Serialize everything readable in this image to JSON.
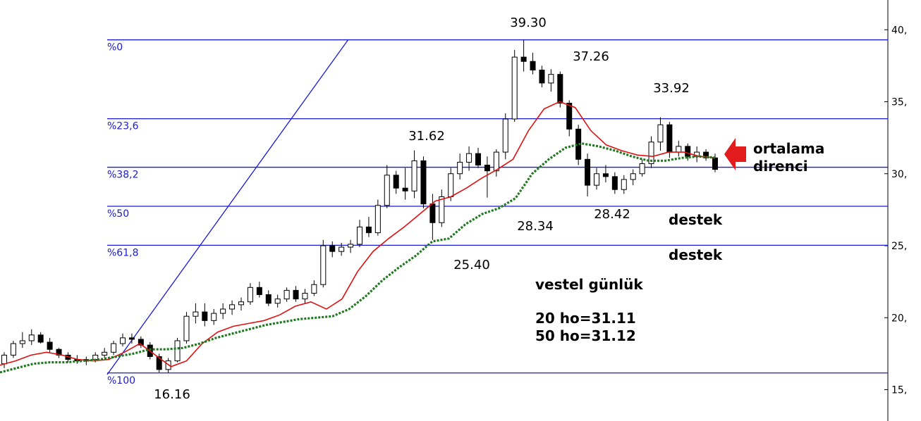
{
  "chart_data": {
    "type": "candlestick",
    "title": "vestel günlük",
    "ylim": [
      14.2,
      41.5
    ],
    "y_ticks": [
      {
        "value": 40,
        "label": "40,"
      },
      {
        "value": 35,
        "label": "35,"
      },
      {
        "value": 30,
        "label": "30,"
      },
      {
        "value": 25,
        "label": "25,"
      },
      {
        "value": 20,
        "label": "20,"
      },
      {
        "value": 15,
        "label": "15,"
      }
    ],
    "fibonacci_levels": [
      {
        "label": "%0",
        "value": 39.3
      },
      {
        "label": "%23,6",
        "value": 33.82
      },
      {
        "label": "%38,2",
        "value": 30.45
      },
      {
        "label": "%50",
        "value": 27.74
      },
      {
        "label": "%61,8",
        "value": 25.03
      },
      {
        "label": "%100",
        "value": 16.16
      }
    ],
    "price_annotations": [
      {
        "text": "39.30",
        "value": 39.3
      },
      {
        "text": "37.26",
        "value": 37.26
      },
      {
        "text": "33.92",
        "value": 33.92
      },
      {
        "text": "31.62",
        "value": 31.62
      },
      {
        "text": "28.34",
        "value": 28.34
      },
      {
        "text": "28.42",
        "value": 28.42
      },
      {
        "text": "25.40",
        "value": 25.4
      },
      {
        "text": "16.16",
        "value": 16.16
      }
    ],
    "notes": {
      "resistance_line1": "ortalama",
      "resistance_line2": "direnci",
      "support1": "destek",
      "support2": "destek",
      "title": "vestel günlük",
      "ma20": "20 ho=31.11",
      "ma50": "50 ho=31.12"
    },
    "series": [
      {
        "name": "20 ho",
        "color": "#e01010",
        "values": [
          16.7,
          17.0,
          17.4,
          17.6,
          17.4,
          17.1,
          17.0,
          17.1,
          17.6,
          18.2,
          17.4,
          16.6,
          17.0,
          18.2,
          19.0,
          19.4,
          19.6,
          19.8,
          20.2,
          20.8,
          21.1,
          20.6,
          21.3,
          23.2,
          24.6,
          25.5,
          26.3,
          27.2,
          28.1,
          28.4,
          29.0,
          29.7,
          30.3,
          31.0,
          33.0,
          34.5,
          35.0,
          34.6,
          33.0,
          32.0,
          31.6,
          31.3,
          31.2,
          31.5,
          31.5,
          31.2,
          31.11
        ]
      },
      {
        "name": "50 ho",
        "color": "#1f7a1f",
        "values": [
          16.2,
          16.5,
          16.8,
          16.9,
          16.9,
          17.0,
          17.1,
          17.3,
          17.5,
          17.8,
          17.8,
          17.9,
          18.2,
          18.6,
          18.9,
          19.2,
          19.5,
          19.7,
          19.9,
          20.0,
          20.1,
          20.6,
          21.5,
          22.6,
          23.5,
          24.3,
          25.3,
          25.5,
          26.5,
          27.2,
          27.6,
          28.3,
          30.0,
          31.0,
          31.8,
          32.1,
          31.9,
          31.6,
          31.2,
          30.9,
          30.9,
          31.1,
          31.2,
          31.12
        ]
      }
    ],
    "candles": [
      [
        16.8,
        17.6,
        16.5,
        17.4
      ],
      [
        17.4,
        18.4,
        17.2,
        18.2
      ],
      [
        18.2,
        19.0,
        17.9,
        18.4
      ],
      [
        18.4,
        19.2,
        18.1,
        18.8
      ],
      [
        18.8,
        19.0,
        18.2,
        18.3
      ],
      [
        18.3,
        18.6,
        17.6,
        17.8
      ],
      [
        17.8,
        17.9,
        17.2,
        17.4
      ],
      [
        17.4,
        17.6,
        16.9,
        17.1
      ],
      [
        17.1,
        17.4,
        16.8,
        17.0
      ],
      [
        17.0,
        17.3,
        16.7,
        17.1
      ],
      [
        17.1,
        17.6,
        16.9,
        17.4
      ],
      [
        17.4,
        17.9,
        17.2,
        17.6
      ],
      [
        17.6,
        18.4,
        17.4,
        18.2
      ],
      [
        18.2,
        18.9,
        18.0,
        18.6
      ],
      [
        18.6,
        18.9,
        18.2,
        18.5
      ],
      [
        18.5,
        18.7,
        17.9,
        18.1
      ],
      [
        18.1,
        18.3,
        17.1,
        17.3
      ],
      [
        17.3,
        17.5,
        16.2,
        16.4
      ],
      [
        16.4,
        17.2,
        16.16,
        17.0
      ],
      [
        17.0,
        18.6,
        16.9,
        18.4
      ],
      [
        18.4,
        20.4,
        18.2,
        20.1
      ],
      [
        20.1,
        21.0,
        19.6,
        20.4
      ],
      [
        20.4,
        21.0,
        19.4,
        19.8
      ],
      [
        19.8,
        20.6,
        19.5,
        20.3
      ],
      [
        20.3,
        21.0,
        19.9,
        20.6
      ],
      [
        20.6,
        21.2,
        20.2,
        20.9
      ],
      [
        20.9,
        21.4,
        20.5,
        21.1
      ],
      [
        21.1,
        22.4,
        20.9,
        22.1
      ],
      [
        22.1,
        22.5,
        21.4,
        21.6
      ],
      [
        21.6,
        21.9,
        20.8,
        21.0
      ],
      [
        21.0,
        21.6,
        20.7,
        21.3
      ],
      [
        21.3,
        22.1,
        21.1,
        21.9
      ],
      [
        21.9,
        22.2,
        21.1,
        21.3
      ],
      [
        21.3,
        22.0,
        21.0,
        21.7
      ],
      [
        21.7,
        22.6,
        21.5,
        22.3
      ],
      [
        22.3,
        25.4,
        22.1,
        25.0
      ],
      [
        25.0,
        25.3,
        24.2,
        24.6
      ],
      [
        24.6,
        25.2,
        24.3,
        24.9
      ],
      [
        24.9,
        25.4,
        24.5,
        25.1
      ],
      [
        25.1,
        26.8,
        24.9,
        26.3
      ],
      [
        26.3,
        27.0,
        25.6,
        25.9
      ],
      [
        25.9,
        28.2,
        25.7,
        27.8
      ],
      [
        27.8,
        30.6,
        27.6,
        29.9
      ],
      [
        29.9,
        30.2,
        28.6,
        29.0
      ],
      [
        29.0,
        30.4,
        28.2,
        28.8
      ],
      [
        28.8,
        31.62,
        28.3,
        30.9
      ],
      [
        30.9,
        31.2,
        27.6,
        27.9
      ],
      [
        27.9,
        28.6,
        25.4,
        26.6
      ],
      [
        26.6,
        28.9,
        26.3,
        28.4
      ],
      [
        28.4,
        30.4,
        28.1,
        30.0
      ],
      [
        30.0,
        31.4,
        29.6,
        30.8
      ],
      [
        30.8,
        31.9,
        30.2,
        31.4
      ],
      [
        31.4,
        31.8,
        30.4,
        30.6
      ],
      [
        30.6,
        31.2,
        28.34,
        30.2
      ],
      [
        30.2,
        31.7,
        29.8,
        31.5
      ],
      [
        31.5,
        34.2,
        31.0,
        33.8
      ],
      [
        33.8,
        38.6,
        33.6,
        38.1
      ],
      [
        38.1,
        39.3,
        37.1,
        37.8
      ],
      [
        37.8,
        38.4,
        36.9,
        37.2
      ],
      [
        37.2,
        37.5,
        36.0,
        36.3
      ],
      [
        36.3,
        37.26,
        35.7,
        36.9
      ],
      [
        36.9,
        37.1,
        34.6,
        34.9
      ],
      [
        34.9,
        35.1,
        32.6,
        33.1
      ],
      [
        33.1,
        33.4,
        30.6,
        31.0
      ],
      [
        31.0,
        31.4,
        28.42,
        29.2
      ],
      [
        29.2,
        30.4,
        28.9,
        30.0
      ],
      [
        30.0,
        30.6,
        29.4,
        29.8
      ],
      [
        29.8,
        30.1,
        28.6,
        28.9
      ],
      [
        28.9,
        29.9,
        28.6,
        29.6
      ],
      [
        29.6,
        30.3,
        29.2,
        30.0
      ],
      [
        30.0,
        31.0,
        29.8,
        30.7
      ],
      [
        30.7,
        32.6,
        30.4,
        32.2
      ],
      [
        32.2,
        33.92,
        31.6,
        33.4
      ],
      [
        33.4,
        33.6,
        31.1,
        31.5
      ],
      [
        31.5,
        32.3,
        31.2,
        31.9
      ],
      [
        31.9,
        32.1,
        30.9,
        31.2
      ],
      [
        31.2,
        31.9,
        30.8,
        31.5
      ],
      [
        31.5,
        31.7,
        30.9,
        31.1
      ],
      [
        31.1,
        31.4,
        30.1,
        30.3
      ]
    ]
  }
}
